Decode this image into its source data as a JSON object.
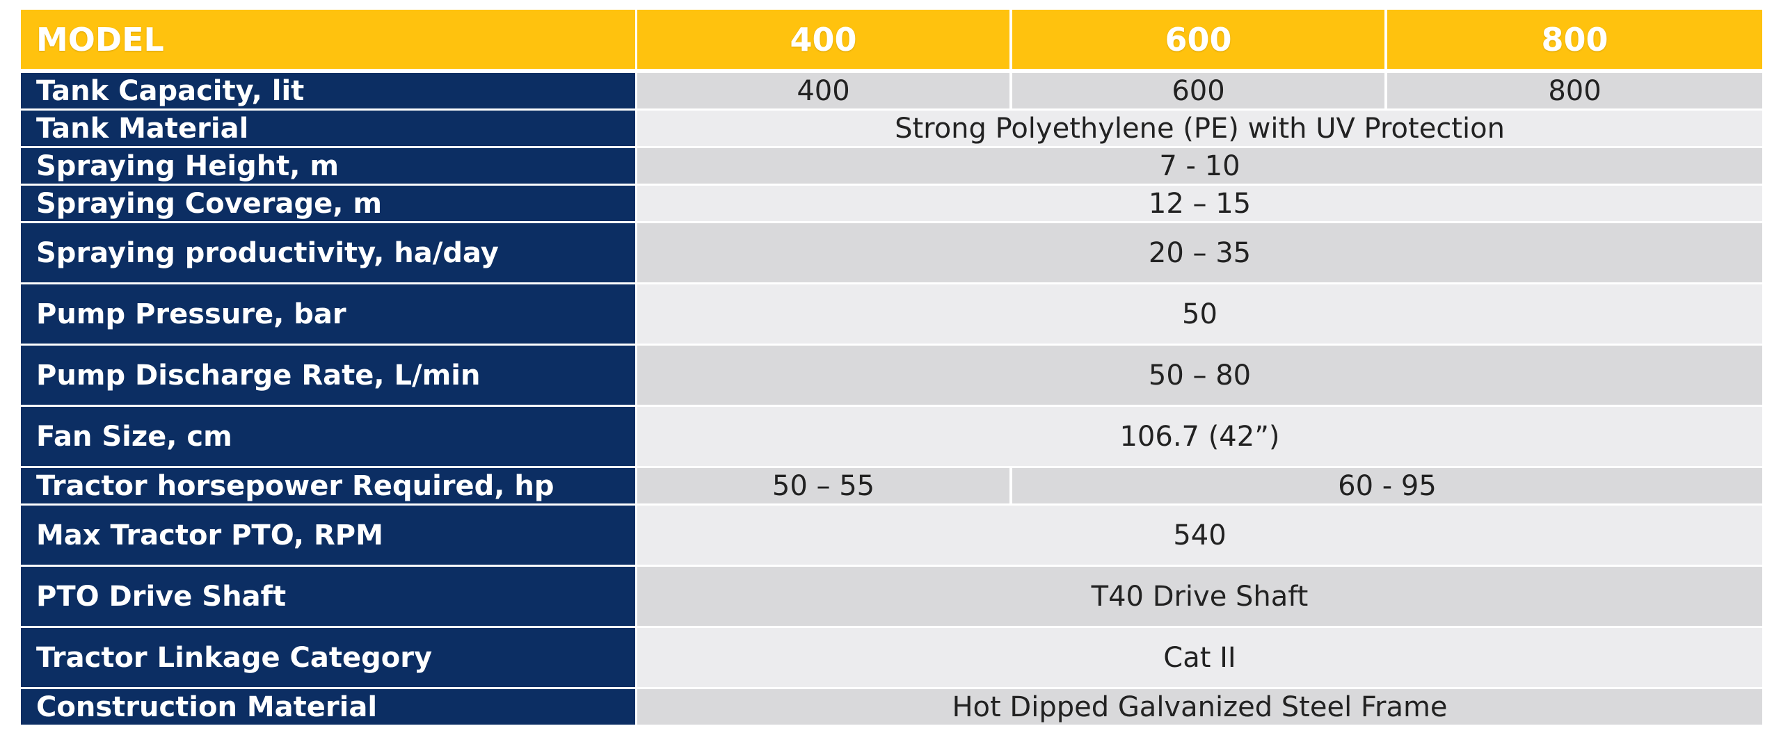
{
  "header": {
    "model_label": "MODEL",
    "models": [
      "400",
      "600",
      "800"
    ]
  },
  "rows": [
    {
      "label": "Tank Capacity, lit",
      "values": [
        "400",
        "600",
        "800"
      ]
    },
    {
      "label": "Tank Material",
      "value": "Strong Polyethylene (PE) with UV Protection"
    },
    {
      "label": "Spraying Height, m",
      "value": "7 - 10"
    },
    {
      "label": "Spraying Coverage, m",
      "value": "12 – 15"
    },
    {
      "label": "Spraying productivity, ha/day",
      "value": "20 – 35"
    },
    {
      "label": "Pump Pressure, bar",
      "value": "50"
    },
    {
      "label": "Pump Discharge Rate, L/min",
      "value": "50 – 80"
    },
    {
      "label": "Fan Size, cm",
      "value": "106.7 (42”)"
    },
    {
      "label": "Tractor horsepower Required, hp",
      "values": [
        "50 – 55",
        "60 - 95"
      ]
    },
    {
      "label": "Max Tractor PTO, RPM",
      "value": "540"
    },
    {
      "label": "PTO Drive Shaft",
      "value": "T40 Drive Shaft"
    },
    {
      "label": "Tractor Linkage Category",
      "value": "Cat II"
    },
    {
      "label": "Construction Material",
      "value": "Hot Dipped Galvanized Steel Frame"
    }
  ],
  "colors": {
    "header_bg": "#FFC20E",
    "label_bg": "#0C2E63",
    "row_dark": "#D9D9DB",
    "row_light": "#ECECEE"
  }
}
